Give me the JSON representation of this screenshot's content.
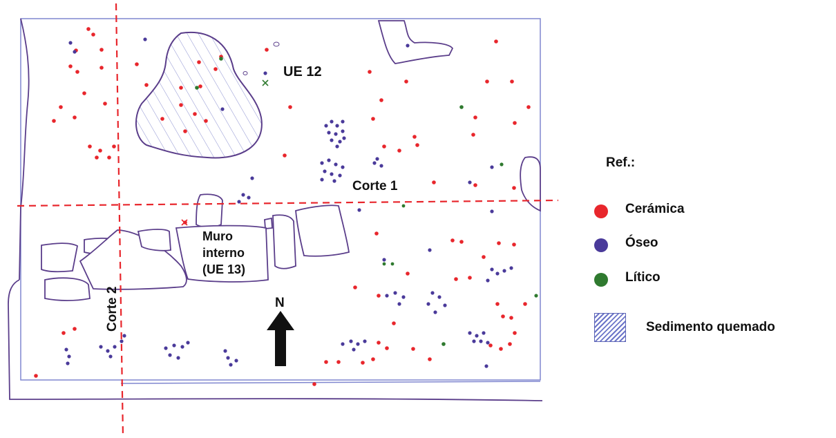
{
  "map": {
    "labels": {
      "ue12": "UE 12",
      "corte1": "Corte 1",
      "corte2": "Corte 2",
      "muro_line1": "Muro",
      "muro_line2": "interno",
      "muro_line3": "(UE 13)",
      "north": "N"
    }
  },
  "legend": {
    "title": "Ref.:",
    "items": [
      {
        "label": "Cerámica",
        "color": "#e8262c"
      },
      {
        "label": "Óseo",
        "color": "#4a3a9a"
      },
      {
        "label": "Lítico",
        "color": "#2f7a2f"
      }
    ],
    "burned_sediment": {
      "label": "Sedimento quemado",
      "color": "#6b74c8"
    }
  },
  "colors": {
    "outline": "#5a3d8a",
    "cut_line": "#e8262c",
    "ceramic": "#e8262c",
    "bone": "#4a3a9a",
    "lithic": "#2f7a2f",
    "hatch": "#7f86cf",
    "border": "#7f86cf"
  }
}
